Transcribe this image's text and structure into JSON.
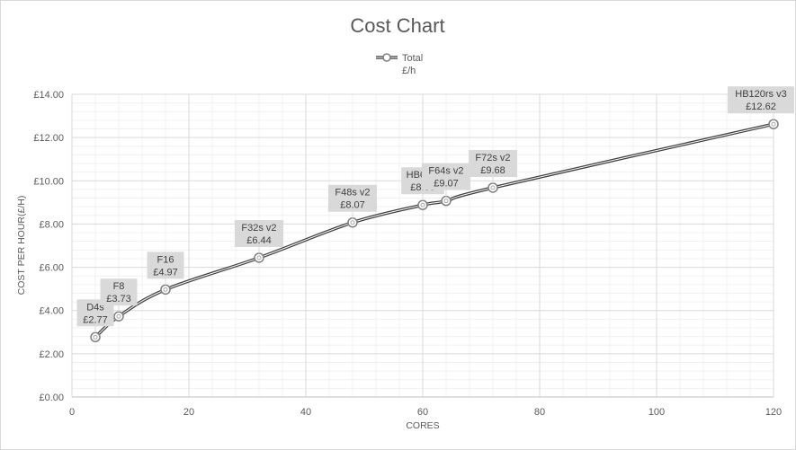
{
  "chart_data": {
    "type": "line",
    "title": "Cost Chart",
    "xlabel": "CORES",
    "ylabel": "COST PER HOUR(£/H)",
    "xlim": [
      0,
      120
    ],
    "ylim": [
      0,
      14
    ],
    "x_ticks": [
      "0",
      "20",
      "40",
      "60",
      "80",
      "100",
      "120"
    ],
    "y_ticks": [
      "£0.00",
      "£2.00",
      "£4.00",
      "£6.00",
      "£8.00",
      "£10.00",
      "£12.00",
      "£14.00"
    ],
    "grid": true,
    "legend_position": "top",
    "series": [
      {
        "name_lines": [
          "Total",
          "£/h"
        ],
        "color": "#7f7f7f",
        "points": [
          {
            "x": 4,
            "y": 2.77,
            "label_name": "D4s",
            "label_value": "£2.77"
          },
          {
            "x": 8,
            "y": 3.73,
            "label_name": "F8",
            "label_value": "£3.73"
          },
          {
            "x": 16,
            "y": 4.97,
            "label_name": "F16",
            "label_value": "£4.97"
          },
          {
            "x": 32,
            "y": 6.44,
            "label_name": "F32s v2",
            "label_value": "£6.44"
          },
          {
            "x": 48,
            "y": 8.07,
            "label_name": "F48s v2",
            "label_value": "£8.07"
          },
          {
            "x": 60,
            "y": 8.88,
            "label_name": "HB60rs",
            "label_value": "£8.88"
          },
          {
            "x": 64,
            "y": 9.07,
            "label_name": "F64s v2",
            "label_value": "£9.07"
          },
          {
            "x": 72,
            "y": 9.68,
            "label_name": "F72s v2",
            "label_value": "£9.68"
          },
          {
            "x": 120,
            "y": 12.62,
            "label_name": "HB120rs v3",
            "label_value": "£12.62"
          }
        ]
      }
    ]
  }
}
